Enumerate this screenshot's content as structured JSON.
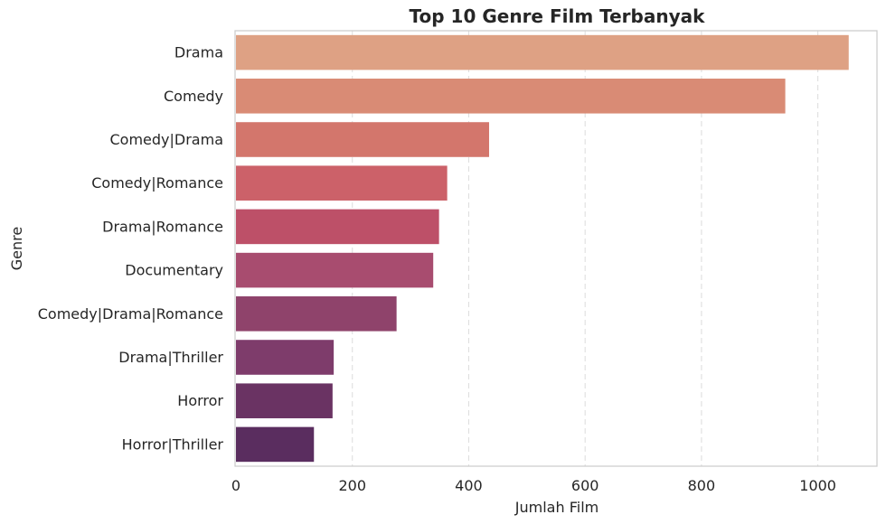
{
  "chart_data": {
    "type": "bar",
    "orientation": "horizontal",
    "title": "Top 10 Genre Film Terbanyak",
    "xlabel": "Jumlah Film",
    "ylabel": "Genre",
    "categories": [
      "Drama",
      "Comedy",
      "Comedy|Drama",
      "Comedy|Romance",
      "Drama|Romance",
      "Documentary",
      "Comedy|Drama|Romance",
      "Drama|Thriller",
      "Horror",
      "Horror|Thriller"
    ],
    "values": [
      1053,
      944,
      435,
      363,
      349,
      339,
      276,
      168,
      166,
      134
    ],
    "colors": [
      "#dea184",
      "#d98b75",
      "#d3766c",
      "#cc6169",
      "#bd5068",
      "#a84c6f",
      "#8f436b",
      "#7e3c6b",
      "#6a3363",
      "#5a2d5f"
    ],
    "xlim": [
      0,
      1100
    ],
    "xticks": [
      "0",
      "200",
      "400",
      "600",
      "800",
      "1000"
    ],
    "xtick_values": [
      0,
      200,
      400,
      600,
      800,
      1000
    ],
    "grid": "x-dashed"
  }
}
